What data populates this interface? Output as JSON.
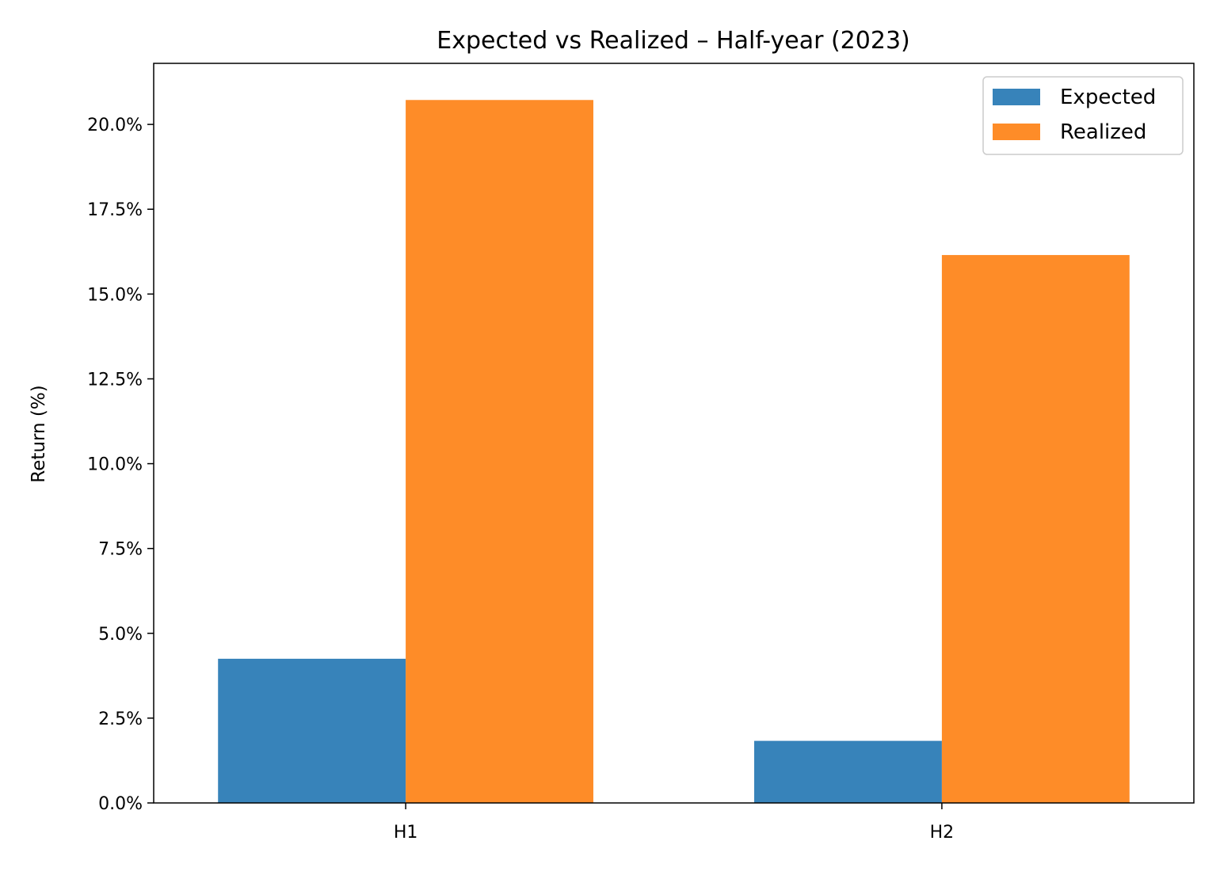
{
  "chart_data": {
    "type": "bar",
    "title": "Expected vs Realized – Half-year (2023)",
    "xlabel": "",
    "ylabel": "Return (%)",
    "categories": [
      "H1",
      "H2"
    ],
    "series": [
      {
        "name": "Expected",
        "values": [
          4.25,
          1.83
        ],
        "color": "#3783ba"
      },
      {
        "name": "Realized",
        "values": [
          20.72,
          16.15
        ],
        "color": "#fe8c28"
      }
    ],
    "ylim": [
      0,
      21.8
    ],
    "yticks": [
      0,
      2.5,
      5,
      7.5,
      10,
      12.5,
      15,
      17.5,
      20
    ],
    "ytick_labels": [
      "0.0%",
      "2.5%",
      "5.0%",
      "7.5%",
      "10.0%",
      "12.5%",
      "15.0%",
      "17.5%",
      "20.0%"
    ],
    "grid": false,
    "legend_position": "top-right"
  }
}
